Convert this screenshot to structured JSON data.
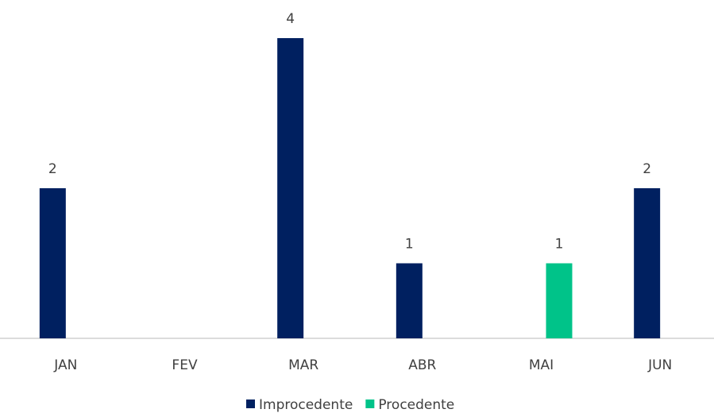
{
  "chart_data": {
    "type": "bar",
    "categories": [
      "JAN",
      "FEV",
      "MAR",
      "ABR",
      "MAI",
      "JUN"
    ],
    "series": [
      {
        "name": "Improcedente",
        "color": "#002060",
        "values": [
          2,
          null,
          4,
          1,
          null,
          2
        ]
      },
      {
        "name": "Procedente",
        "color": "#00c389",
        "values": [
          null,
          null,
          null,
          null,
          1,
          null
        ]
      }
    ],
    "ylim": [
      0,
      4
    ],
    "legend": "bottom"
  }
}
